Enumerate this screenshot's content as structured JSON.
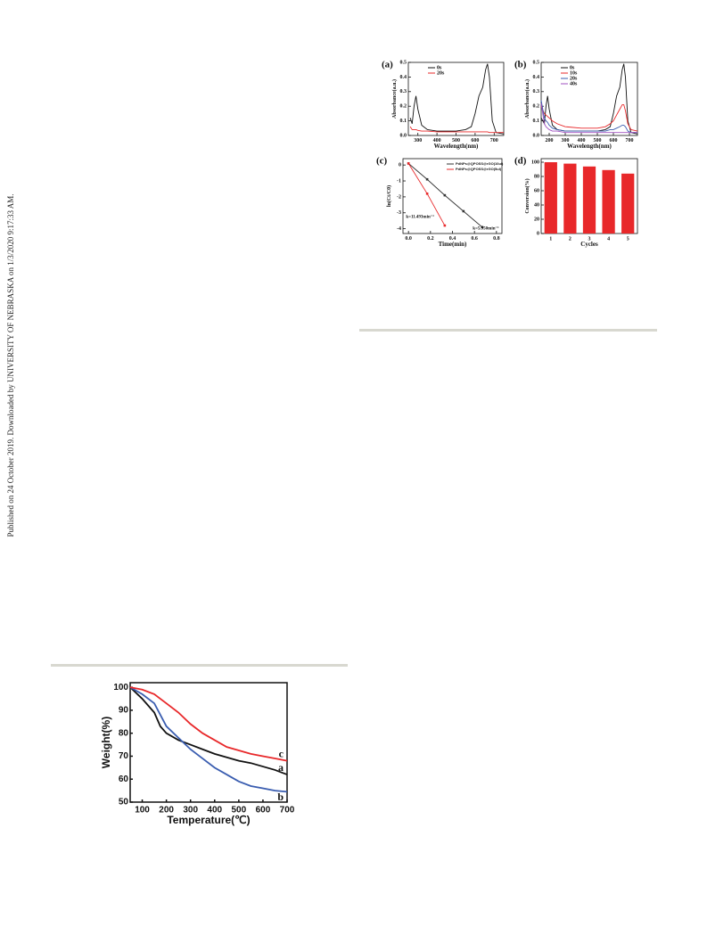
{
  "side_note": "Published on 24 October 2019. Downloaded by UNIVERSITY OF NEBRASKA on 1/3/2020 9:17:33 AM.",
  "chart_data": [
    {
      "type": "line",
      "label": "(a)",
      "x_label": "Wavelength(nm)",
      "y_label": "Absorbance(a.u.)",
      "legend": "upper left",
      "x": [
        260,
        270,
        280,
        290,
        300,
        320,
        350,
        400,
        450,
        500,
        550,
        580,
        600,
        620,
        640,
        655,
        665,
        675,
        690,
        710,
        750
      ],
      "xlim": [
        250,
        750
      ],
      "xticks": [
        300,
        400,
        500,
        600,
        700
      ],
      "ylim": [
        0,
        0.5
      ],
      "yticks": [
        {
          "value": 0,
          "label": "0.0"
        },
        0.1,
        0.2,
        0.3,
        0.4,
        0.5
      ],
      "series": [
        {
          "name": "0s",
          "color": "#111111",
          "values": [
            0.12,
            0.08,
            0.2,
            0.27,
            0.18,
            0.07,
            0.04,
            0.03,
            0.03,
            0.03,
            0.04,
            0.06,
            0.15,
            0.27,
            0.33,
            0.45,
            0.49,
            0.4,
            0.1,
            0.02,
            0.01
          ]
        },
        {
          "name": "20s",
          "color": "#e8282a",
          "values": [
            0.06,
            0.04,
            0.04,
            0.04,
            0.035,
            0.03,
            0.03,
            0.025,
            0.025,
            0.025,
            0.025,
            0.025,
            0.025,
            0.025,
            0.025,
            0.025,
            0.025,
            0.02,
            0.02,
            0.02,
            0.02
          ]
        }
      ]
    },
    {
      "type": "line",
      "label": "(b)",
      "x_label": "Wavelength(nm)",
      "y_label": "Absorbance(a.u.)",
      "legend": "upper left",
      "x": [
        150,
        170,
        180,
        190,
        200,
        220,
        250,
        300,
        400,
        500,
        550,
        580,
        600,
        620,
        640,
        655,
        665,
        675,
        690,
        710,
        750
      ],
      "xlim": [
        150,
        750
      ],
      "xticks": [
        200,
        300,
        400,
        500,
        600,
        700
      ],
      "ylim": [
        0,
        0.5
      ],
      "yticks": [
        {
          "value": 0,
          "label": "0.0"
        },
        0.1,
        0.2,
        0.3,
        0.4,
        0.5
      ],
      "series": [
        {
          "name": "0s",
          "color": "#111111",
          "values": [
            0.12,
            0.08,
            0.2,
            0.27,
            0.18,
            0.07,
            0.04,
            0.03,
            0.03,
            0.03,
            0.04,
            0.06,
            0.15,
            0.27,
            0.33,
            0.45,
            0.49,
            0.4,
            0.1,
            0.02,
            0.01
          ]
        },
        {
          "name": "10s",
          "color": "#e8282a",
          "values": [
            0.2,
            0.15,
            0.14,
            0.13,
            0.12,
            0.1,
            0.08,
            0.06,
            0.05,
            0.05,
            0.06,
            0.08,
            0.1,
            0.14,
            0.18,
            0.21,
            0.21,
            0.17,
            0.08,
            0.04,
            0.03
          ]
        },
        {
          "name": "20s",
          "color": "#3a5db0",
          "values": [
            0.24,
            0.12,
            0.1,
            0.09,
            0.07,
            0.05,
            0.04,
            0.03,
            0.03,
            0.03,
            0.03,
            0.04,
            0.04,
            0.05,
            0.06,
            0.07,
            0.07,
            0.06,
            0.03,
            0.02,
            0.02
          ]
        },
        {
          "name": "40s",
          "color": "#a050c0",
          "values": [
            0.22,
            0.08,
            0.06,
            0.05,
            0.04,
            0.03,
            0.03,
            0.02,
            0.02,
            0.02,
            0.02,
            0.02,
            0.02,
            0.02,
            0.02,
            0.02,
            0.02,
            0.02,
            0.02,
            0.02,
            0.02
          ]
        }
      ]
    },
    {
      "type": "line",
      "label": "(c)",
      "x_label": "Time(min)",
      "y_label": "ln(Ct/C0)",
      "legend": "upper right",
      "markers": true,
      "x": [
        0,
        0.17,
        0.33,
        0.5,
        0.67
      ],
      "xlim": [
        -0.05,
        0.85
      ],
      "xticks": [
        {
          "value": 0,
          "label": "0.0"
        },
        0.2,
        0.4,
        0.6,
        0.8
      ],
      "ylim": [
        -4.3,
        0.4
      ],
      "yticks": [
        0,
        -1,
        -2,
        -3,
        -4
      ],
      "annotations": [
        "k=11.493min⁻¹",
        "k=5.950min⁻¹"
      ],
      "series": [
        {
          "name": "PdNPs@QPOSS@rGO(10ul)",
          "color": "#333333",
          "values": [
            0.1,
            -0.9,
            -1.9,
            -2.9,
            -3.9
          ]
        },
        {
          "name": "PdNPs@QPOSS@rGO(5ul)",
          "color": "#e8282a",
          "values": [
            0.1,
            -1.8,
            -3.8,
            null,
            null
          ]
        }
      ]
    },
    {
      "type": "bar",
      "label": "(d)",
      "x_label": "Cycles",
      "y_label": "Conversion(%)",
      "color": "#e8282a",
      "categories": [
        "1",
        "2",
        "3",
        "4",
        "5"
      ],
      "values": [
        100,
        98,
        94,
        89,
        84
      ],
      "ylim": [
        0,
        105
      ],
      "yticks": [
        0,
        20,
        40,
        60,
        80,
        100
      ]
    },
    {
      "type": "line",
      "x_label": "Temperature(℃)",
      "y_label": "Weight(%)",
      "x": [
        50,
        100,
        150,
        175,
        200,
        250,
        300,
        350,
        400,
        450,
        500,
        550,
        600,
        650,
        700
      ],
      "xlim": [
        50,
        700
      ],
      "xticks": [
        100,
        200,
        300,
        400,
        500,
        600,
        700
      ],
      "ylim": [
        50,
        102
      ],
      "yticks": [
        50,
        60,
        70,
        80,
        90,
        100
      ],
      "series": [
        {
          "name": "a",
          "color": "#111111",
          "values": [
            100,
            95,
            89,
            83,
            80,
            77,
            75,
            73,
            71,
            69.5,
            68,
            67,
            65.5,
            64,
            62
          ]
        },
        {
          "name": "b",
          "color": "#3a5db0",
          "values": [
            100,
            97,
            93,
            88,
            83,
            78,
            73,
            69,
            65,
            62,
            59,
            57,
            56,
            55,
            54.5
          ]
        },
        {
          "name": "c",
          "color": "#e8282a",
          "values": [
            100,
            99,
            97,
            95,
            93,
            89,
            84,
            80,
            77,
            74,
            72.5,
            71,
            70,
            69,
            68
          ]
        }
      ]
    }
  ]
}
